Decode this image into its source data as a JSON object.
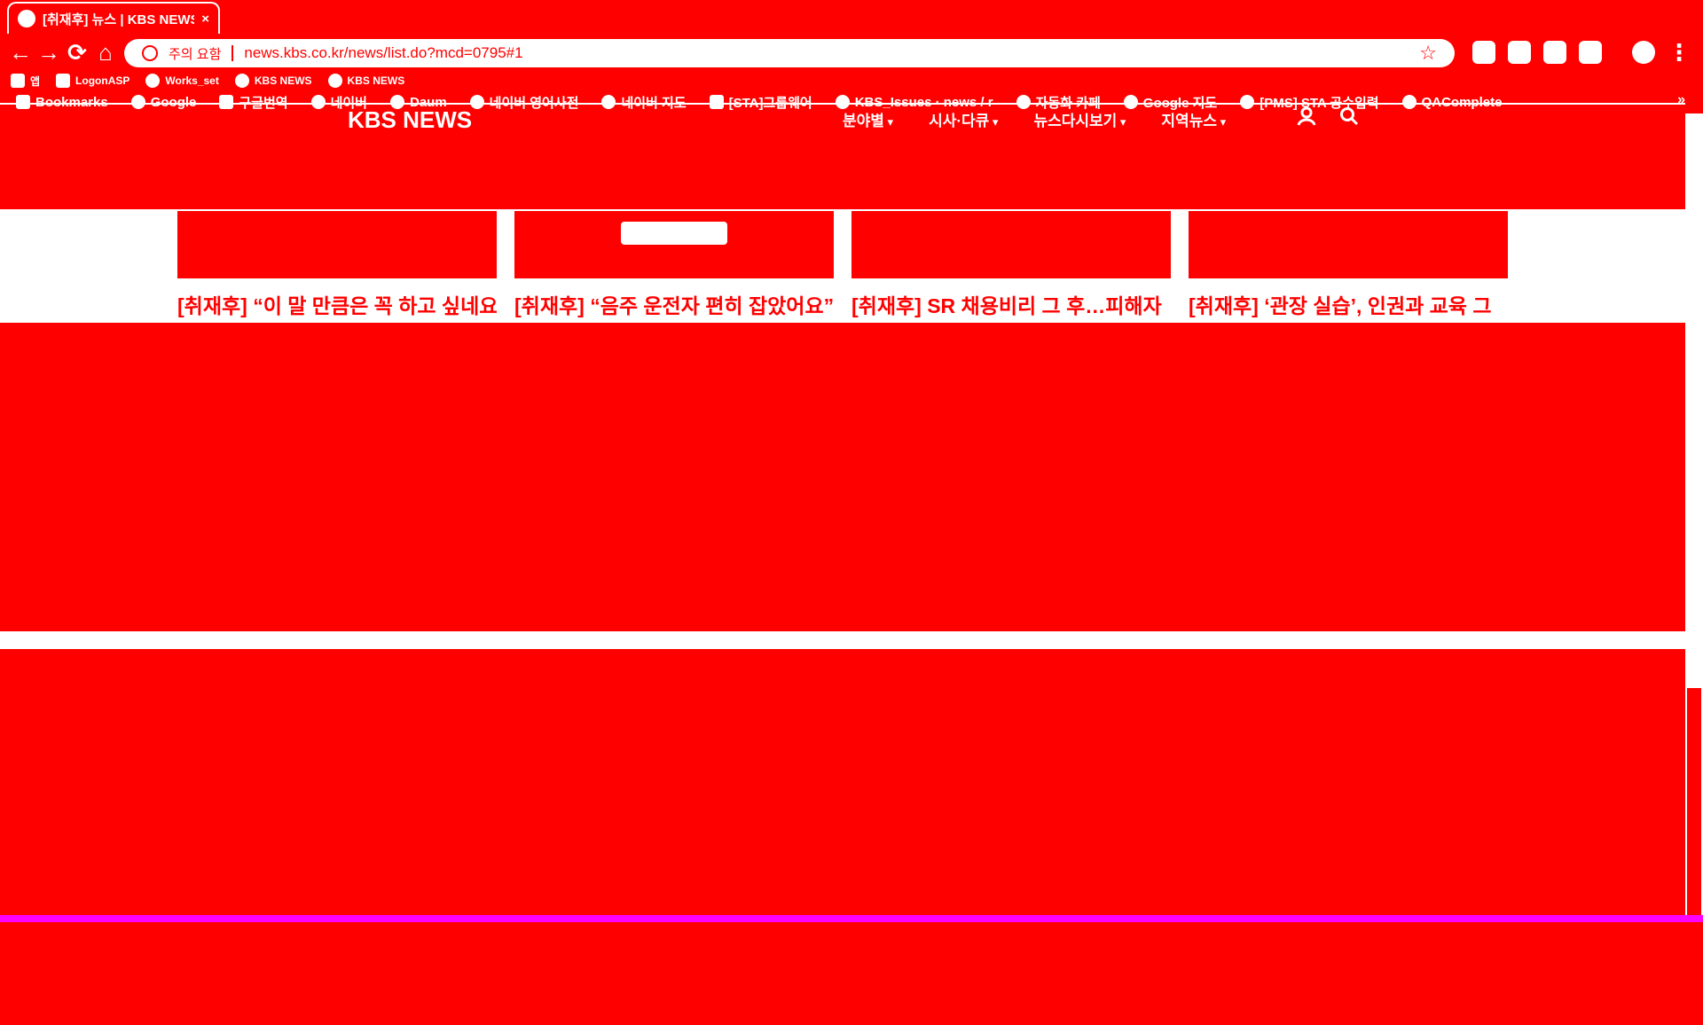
{
  "browser": {
    "tab": {
      "title": "[취재후] 뉴스 | KBS NEWS",
      "close_glyph": "×"
    },
    "nav": {
      "back": "←",
      "forward": "→",
      "reload": "⟳",
      "home": "⌂"
    },
    "omnibox": {
      "security": "주의 요함",
      "url": "news.kbs.co.kr/news/list.do?mcd=0795#1",
      "star": "☆"
    },
    "menu": "⋮",
    "bookmarks_row1": [
      {
        "label": "앱",
        "icon": "apps-icon"
      },
      {
        "label": "LogonASP",
        "icon": "page-icon"
      },
      {
        "label": "Works_set",
        "icon": "site-icon"
      },
      {
        "label": "KBS NEWS",
        "icon": "site-icon"
      },
      {
        "label": "KBS NEWS",
        "icon": "site-icon"
      }
    ],
    "bookmarks_row2": [
      {
        "label": "Bookmarks",
        "icon": "star-icon"
      },
      {
        "label": "Google",
        "icon": "google-icon"
      },
      {
        "label": "구글번역",
        "icon": "folder-icon"
      },
      {
        "label": "네이버",
        "icon": "site-icon"
      },
      {
        "label": "Daum",
        "icon": "site-icon"
      },
      {
        "label": "네이버 영어사전",
        "icon": "site-icon"
      },
      {
        "label": "네이버 지도",
        "icon": "site-icon"
      },
      {
        "label": "[STA]그룹웨어",
        "icon": "page-icon"
      },
      {
        "label": "KBS_Issues · news / r",
        "icon": "site-icon"
      },
      {
        "label": "자동화 카페",
        "icon": "site-icon"
      },
      {
        "label": "Google 지도",
        "icon": "site-icon"
      },
      {
        "label": "[PMS] STA 공수입력",
        "icon": "site-icon"
      },
      {
        "label": "QAComplete",
        "icon": "site-icon"
      }
    ],
    "bookmarks_more": "»"
  },
  "site": {
    "logo": "KBS NEWS",
    "gnb": [
      "분야별",
      "시사·다큐",
      "뉴스다시보기",
      "지역뉴스"
    ],
    "icons": {
      "user": "user-icon",
      "search": "search-icon"
    }
  },
  "articles": [
    {
      "headline": "[취재후] “이 말 만큼은 꼭 하고 싶네요”"
    },
    {
      "headline": "[취재후] “음주 운전자 편히 잡았어요”"
    },
    {
      "headline": "[취재후] SR 채용비리 그 후…피해자"
    },
    {
      "headline": "[취재후] ‘관장 실습’, 인권과 교육 그"
    }
  ],
  "colors": {
    "background": "#ff0000",
    "foreground": "#ffffff",
    "edge": "#ff00ff"
  }
}
